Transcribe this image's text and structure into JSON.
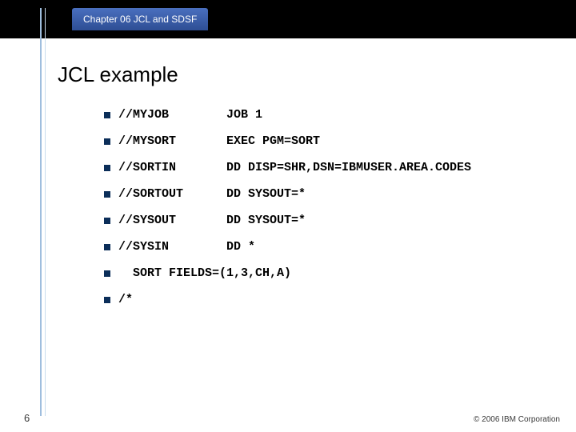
{
  "header": {
    "tab_label": "Chapter 06 JCL and SDSF",
    "tab_bg_top": "#4a6fbf",
    "tab_bg_bottom": "#2e4e94",
    "bar_bg": "#000000"
  },
  "title": "JCL example",
  "bullets": {
    "bullet_color": "#0b2e59",
    "font_family": "Courier New",
    "font_weight": "bold",
    "font_size_pt": 11,
    "rows": [
      {
        "c1": "//MYJOB",
        "c2": "JOB 1"
      },
      {
        "c1": "//MYSORT",
        "c2": "EXEC PGM=SORT"
      },
      {
        "c1": "//SORTIN",
        "c2": "DD DISP=SHR,DSN=IBMUSER.AREA.CODES"
      },
      {
        "c1": "//SORTOUT",
        "c2": "DD SYSOUT=*"
      },
      {
        "c1": "//SYSOUT",
        "c2": "DD SYSOUT=*"
      },
      {
        "c1": "//SYSIN",
        "c2": "DD *"
      }
    ],
    "cont1": "  SORT FIELDS=(1,3,CH,A)",
    "cont2": "/*"
  },
  "footer": {
    "page": "6",
    "copyright": "© 2006 IBM Corporation"
  },
  "accent": {
    "rule_color": "#9fbede",
    "rule_color_light": "#c8dbee"
  }
}
